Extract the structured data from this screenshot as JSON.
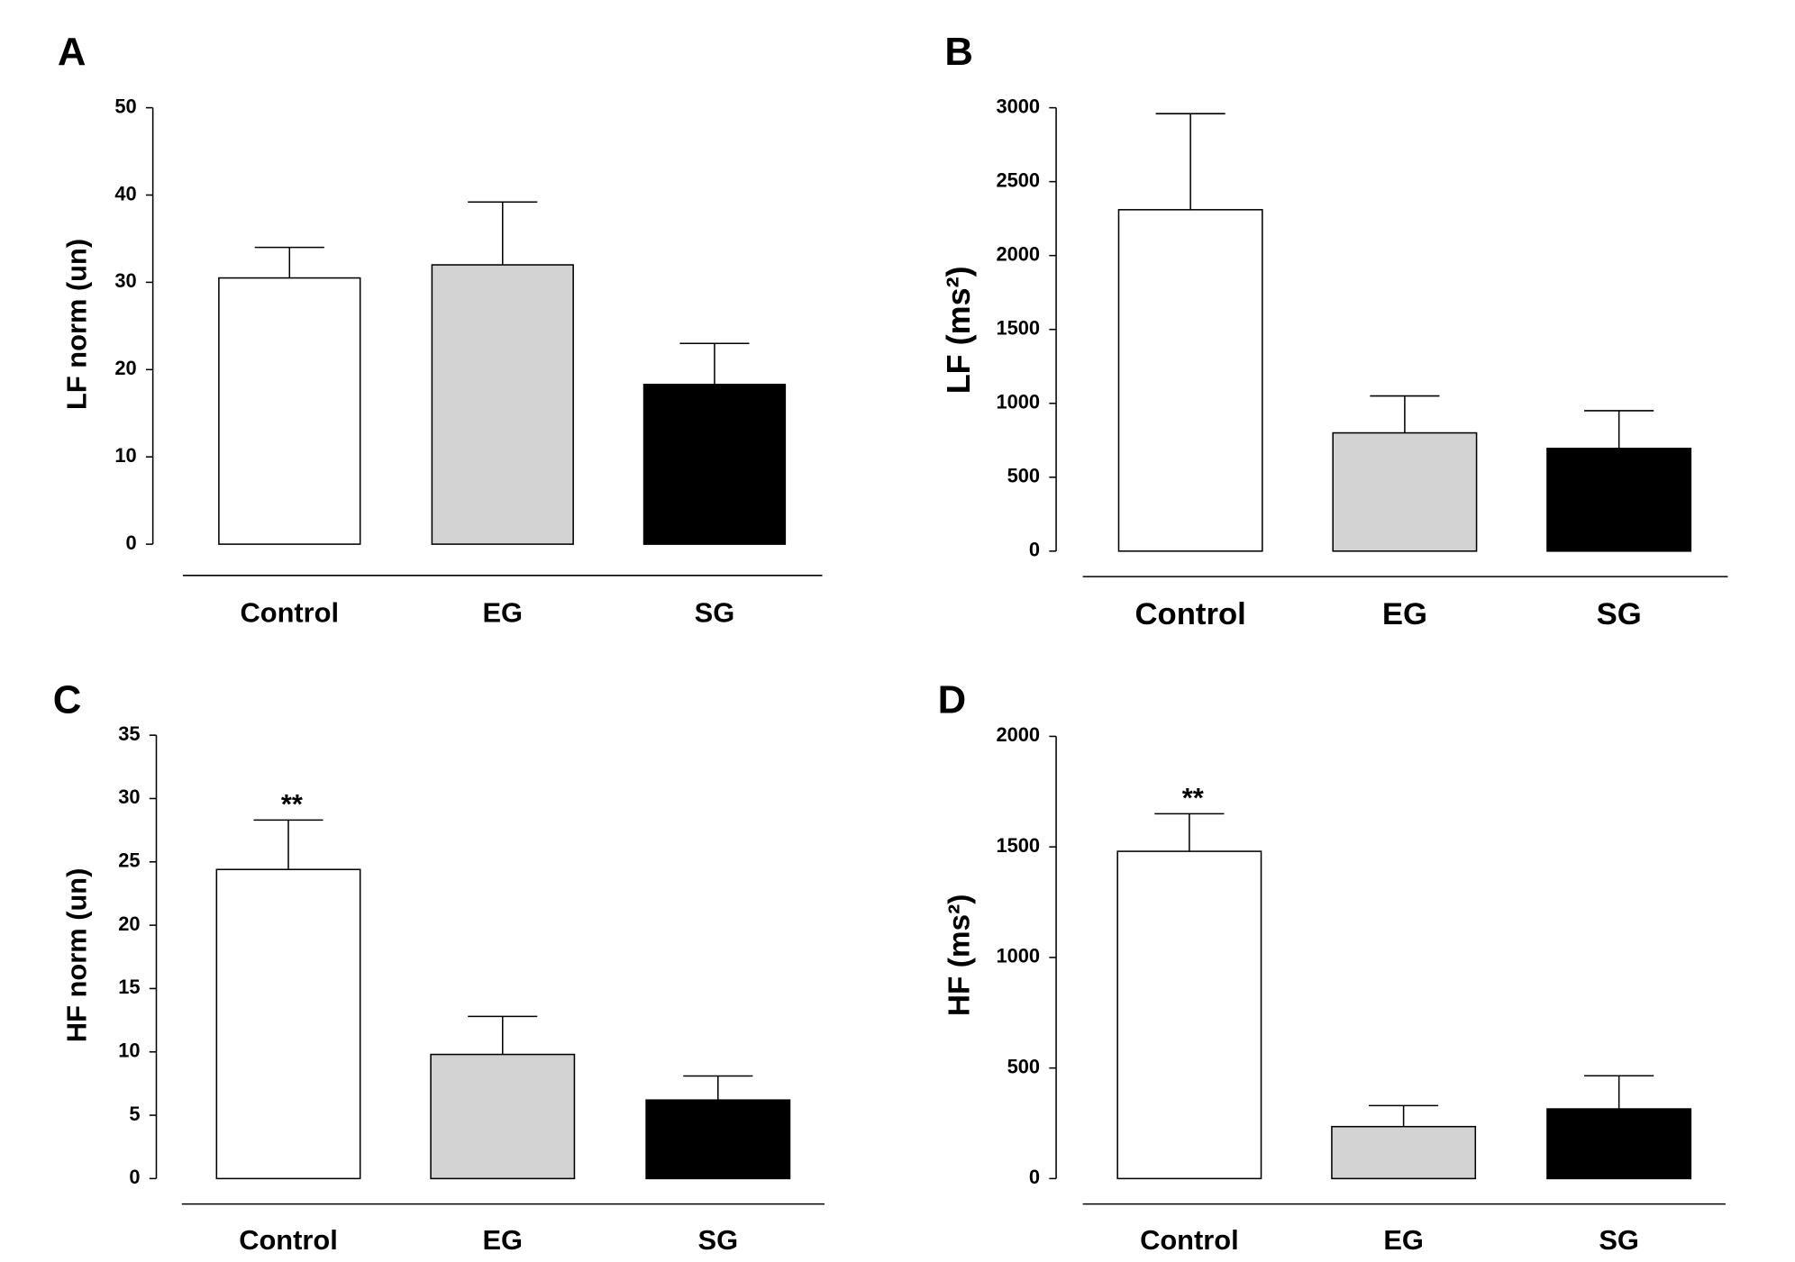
{
  "chart_data": [
    {
      "type": "bar",
      "panel_label": "A",
      "ylabel": "LF norm (un)",
      "categories": [
        "Control",
        "EG",
        "SG"
      ],
      "values": [
        30.5,
        32,
        18.3
      ],
      "errors": [
        3.5,
        7.2,
        4.7
      ],
      "colors": [
        "#ffffff",
        "#d3d3d3",
        "#000000"
      ],
      "ylim": [
        0,
        50
      ],
      "yticks": [
        0,
        10,
        20,
        30,
        40,
        50
      ]
    },
    {
      "type": "bar",
      "panel_label": "B",
      "ylabel": "LF (ms²)",
      "categories": [
        "Control",
        "EG",
        "SG"
      ],
      "values": [
        2310,
        800,
        695
      ],
      "errors": [
        650,
        250,
        255
      ],
      "colors": [
        "#ffffff",
        "#d3d3d3",
        "#000000"
      ],
      "ylim": [
        0,
        3000
      ],
      "yticks": [
        0,
        500,
        1000,
        1500,
        2000,
        2500,
        3000
      ]
    },
    {
      "type": "bar",
      "panel_label": "C",
      "ylabel": "HF norm (un)",
      "categories": [
        "Control",
        "EG",
        "SG"
      ],
      "values": [
        24.4,
        9.8,
        6.2
      ],
      "errors": [
        3.9,
        3.0,
        1.9
      ],
      "colors": [
        "#ffffff",
        "#d3d3d3",
        "#000000"
      ],
      "annotations": [
        {
          "text": "**",
          "x": "Control"
        }
      ],
      "ylim": [
        0,
        35
      ],
      "yticks": [
        0,
        5,
        10,
        15,
        20,
        25,
        30,
        35
      ]
    },
    {
      "type": "bar",
      "panel_label": "D",
      "ylabel": "HF (ms²)",
      "categories": [
        "Control",
        "EG",
        "SG"
      ],
      "values": [
        1480,
        235,
        315
      ],
      "errors": [
        170,
        95,
        150
      ],
      "colors": [
        "#ffffff",
        "#d3d3d3",
        "#000000"
      ],
      "annotations": [
        {
          "text": "**",
          "x": "Control"
        }
      ],
      "ylim": [
        0,
        2000
      ],
      "yticks": [
        0,
        500,
        1000,
        1500,
        2000
      ]
    }
  ]
}
